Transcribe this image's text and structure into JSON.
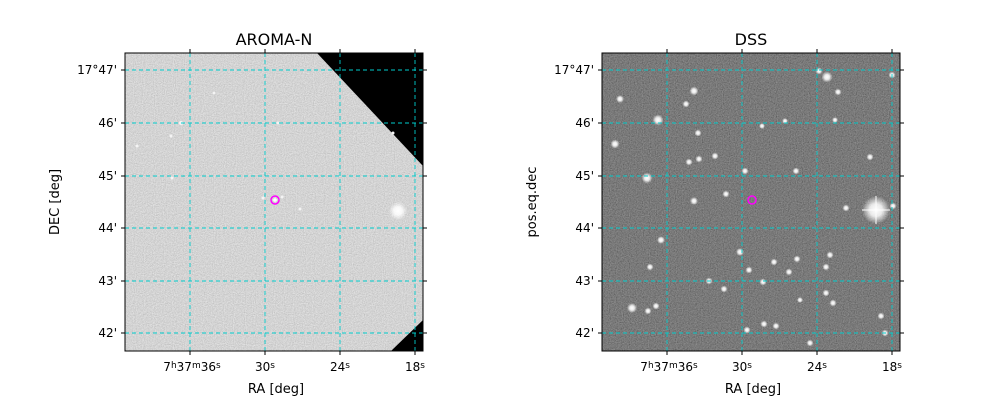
{
  "panels": [
    {
      "title": "AROMA-N",
      "xlabel": "RA [deg]",
      "ylabel": "DEC [deg]",
      "x_ticks": [
        {
          "label_main": "7",
          "sup1": "h",
          "mid": "37",
          "sup2": "m",
          "mid2": "36",
          "sup3": "s"
        },
        {
          "label_main": "30",
          "sup3": "s"
        },
        {
          "label_main": "24",
          "sup3": "s"
        },
        {
          "label_main": "18",
          "sup3": "s"
        }
      ],
      "y_ticks": [
        "17°47'",
        "46'",
        "45'",
        "44'",
        "43'",
        "42'"
      ],
      "image_style": "grey",
      "marker_color": "#ff00ff",
      "grid_color": "#00cccc"
    },
    {
      "title": "DSS",
      "xlabel": "RA [deg]",
      "ylabel": "pos.eq.dec",
      "x_ticks": [
        {
          "label_main": "7",
          "sup1": "h",
          "mid": "37",
          "sup2": "m",
          "mid2": "36",
          "sup3": "s"
        },
        {
          "label_main": "30",
          "sup3": "s"
        },
        {
          "label_main": "24",
          "sup3": "s"
        },
        {
          "label_main": "18",
          "sup3": "s"
        }
      ],
      "y_ticks": [
        "17°47'",
        "46'",
        "45'",
        "44'",
        "43'",
        "42'"
      ],
      "image_style": "dark",
      "marker_color": "#ff00ff",
      "grid_color": "#00cccc"
    }
  ]
}
